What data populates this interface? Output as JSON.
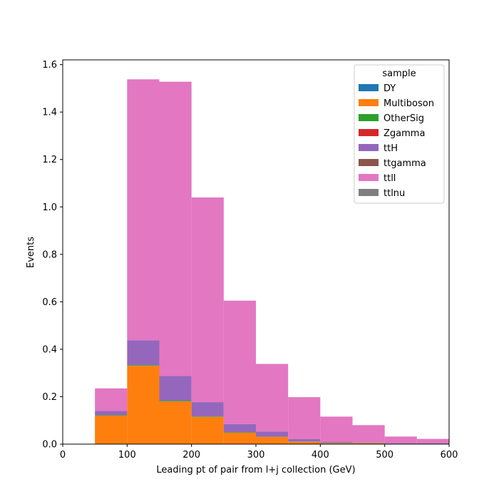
{
  "chart_data": {
    "type": "bar",
    "stacked": true,
    "xlabel": "Leading pt of pair from l+j collection (GeV)",
    "ylabel": "Events",
    "xlim": [
      0,
      600
    ],
    "ylim": [
      0,
      1.62
    ],
    "x_ticks": [
      0,
      100,
      200,
      300,
      400,
      500,
      600
    ],
    "y_ticks": [
      0.0,
      0.2,
      0.4,
      0.6,
      0.8,
      1.0,
      1.2,
      1.4,
      1.6
    ],
    "bin_edges": [
      50,
      100,
      150,
      200,
      250,
      300,
      350,
      400,
      450,
      500,
      550,
      600
    ],
    "grid": false,
    "legend": {
      "title": "sample",
      "position": "top-right"
    },
    "series": [
      {
        "name": "DY",
        "color": "#1f77b4",
        "values": [
          0,
          0,
          0,
          0,
          0,
          0,
          0,
          0,
          0,
          0,
          0
        ]
      },
      {
        "name": "Multiboson",
        "color": "#ff7f0e",
        "values": [
          0.12,
          0.33,
          0.18,
          0.115,
          0.048,
          0.03,
          0.01,
          0.004,
          0.004,
          0.002,
          0.002
        ]
      },
      {
        "name": "OtherSig",
        "color": "#2ca02c",
        "values": [
          0.002,
          0.003,
          0.003,
          0.002,
          0.002,
          0.001,
          0.001,
          0.001,
          0.001,
          0,
          0
        ]
      },
      {
        "name": "Zgamma",
        "color": "#d62728",
        "values": [
          0,
          0,
          0,
          0,
          0,
          0,
          0,
          0,
          0,
          0,
          0
        ]
      },
      {
        "name": "ttH",
        "color": "#9467bd",
        "values": [
          0.018,
          0.105,
          0.105,
          0.06,
          0.035,
          0.022,
          0.011,
          0.004,
          0.002,
          0.001,
          0.001
        ]
      },
      {
        "name": "ttgamma",
        "color": "#8c564b",
        "values": [
          0,
          0,
          0,
          0,
          0,
          0,
          0,
          0,
          0,
          0,
          0
        ]
      },
      {
        "name": "ttll",
        "color": "#e377c2",
        "values": [
          0.095,
          1.1,
          1.24,
          0.863,
          0.52,
          0.285,
          0.176,
          0.107,
          0.073,
          0.029,
          0.019
        ]
      },
      {
        "name": "ttlnu",
        "color": "#7f7f7f",
        "values": [
          0,
          0,
          0,
          0,
          0,
          0,
          0,
          0,
          0,
          0,
          0
        ]
      }
    ]
  }
}
